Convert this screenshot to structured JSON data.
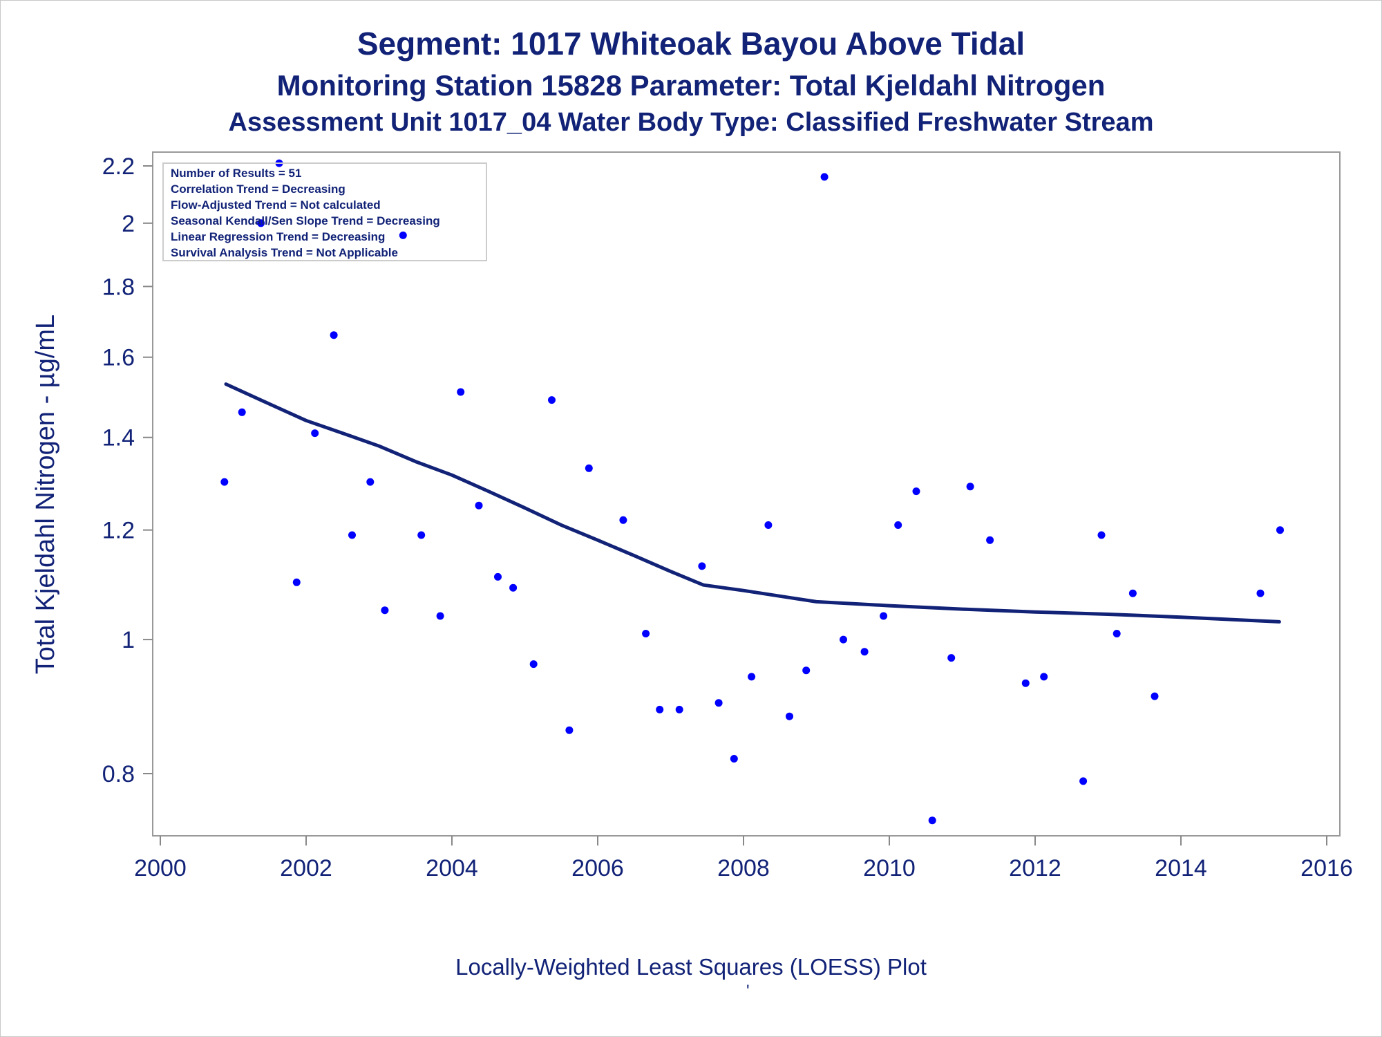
{
  "titles": {
    "line1": "Segment: 1017  Whiteoak Bayou Above Tidal",
    "line2": "Monitoring Station 15828 Parameter: Total Kjeldahl Nitrogen",
    "line3": "Assessment Unit 1017_04   Water Body Type: Classified Freshwater Stream"
  },
  "footnote": "Locally-Weighted Least Squares (LOESS) Plot",
  "footnote_mark": "'",
  "stats_box": [
    "Number of Results = 51",
    "Correlation Trend = Decreasing",
    "Flow-Adjusted Trend = Not calculated",
    "Seasonal Kendall/Sen Slope Trend = Decreasing",
    "Linear Regression Trend = Decreasing",
    "Survival Analysis Trend = Not Applicable"
  ],
  "colors": {
    "points": "#0000ff",
    "loess_line": "#112277",
    "text": "#112277",
    "axis": "#888888"
  },
  "chart_data": {
    "type": "scatter",
    "title": "Segment: 1017  Whiteoak Bayou Above Tidal",
    "xlabel": "",
    "ylabel": "Total Kjeldahl Nitrogen -  µg/mL",
    "x_scale": "linear",
    "y_scale": "log",
    "xlim": [
      2000,
      2016
    ],
    "ylim": [
      0.7,
      2.25
    ],
    "x_ticks": [
      2000,
      2002,
      2004,
      2006,
      2008,
      2010,
      2012,
      2014,
      2016
    ],
    "y_ticks": [
      0.8,
      1,
      1.2,
      1.4,
      1.6,
      1.8,
      2,
      2.2
    ],
    "y_tick_labels": [
      "0.8",
      "1",
      "1.2",
      "1.4",
      "1.6",
      "1.8",
      "2",
      "2.2"
    ],
    "grid": false,
    "series": [
      {
        "kind": "points",
        "x": [
          2000.88,
          2001.12,
          2001.63,
          2001.38,
          2001.87,
          2002.12,
          2002.38,
          2002.63,
          2002.88,
          2003.08,
          2003.33,
          2003.58,
          2003.84,
          2004.12,
          2004.37,
          2004.63,
          2004.84,
          2005.12,
          2005.37,
          2005.61,
          2005.88,
          2006.35,
          2006.66,
          2006.85,
          2007.12,
          2007.43,
          2007.66,
          2007.87,
          2008.11,
          2008.34,
          2008.63,
          2008.86,
          2009.11,
          2009.37,
          2009.66,
          2009.92,
          2010.12,
          2010.37,
          2010.59,
          2010.85,
          2011.11,
          2011.38,
          2011.87,
          2012.12,
          2012.66,
          2012.91,
          2013.12,
          2013.34,
          2013.64,
          2015.09,
          2015.36
        ],
        "y": [
          1.3,
          1.46,
          2.21,
          2.0,
          1.1,
          1.41,
          1.66,
          1.19,
          1.3,
          1.05,
          1.96,
          1.19,
          1.04,
          1.51,
          1.25,
          1.11,
          1.09,
          0.96,
          1.49,
          0.86,
          1.33,
          1.22,
          1.01,
          0.89,
          0.89,
          1.13,
          0.9,
          0.82,
          0.94,
          1.21,
          0.88,
          0.95,
          2.16,
          1.0,
          0.98,
          1.04,
          1.21,
          1.28,
          0.74,
          0.97,
          1.29,
          1.18,
          0.93,
          0.94,
          0.79,
          1.19,
          1.01,
          1.08,
          0.91,
          1.08,
          1.2
        ]
      },
      {
        "kind": "loess_line",
        "x": [
          2000.9,
          2001.5,
          2002.0,
          2002.5,
          2003.0,
          2003.5,
          2004.0,
          2004.5,
          2005.0,
          2005.5,
          2006.0,
          2006.5,
          2007.0,
          2007.45,
          2008.0,
          2008.5,
          2009.0,
          2010.0,
          2011.0,
          2012.0,
          2013.0,
          2014.0,
          2015.35
        ],
        "y": [
          1.53,
          1.48,
          1.44,
          1.41,
          1.38,
          1.345,
          1.315,
          1.28,
          1.245,
          1.21,
          1.18,
          1.15,
          1.12,
          1.095,
          1.085,
          1.075,
          1.065,
          1.058,
          1.052,
          1.047,
          1.043,
          1.038,
          1.03
        ]
      }
    ]
  }
}
